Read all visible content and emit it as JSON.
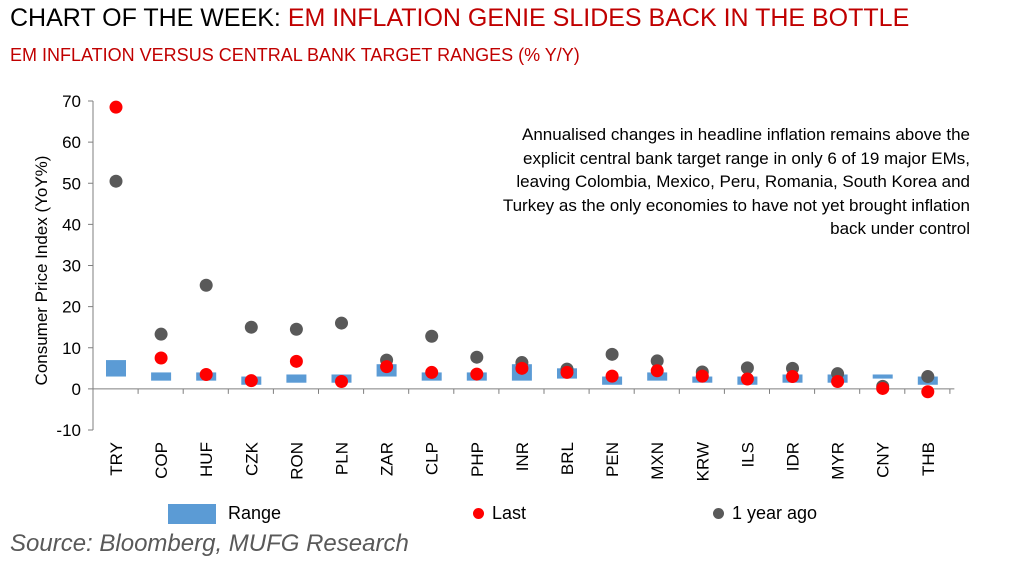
{
  "title": {
    "prefix": "CHART OF THE WEEK:",
    "accent": "EM INFLATION GENIE SLIDES BACK IN THE BOTTLE"
  },
  "subtitle": "EM INFLATION VERSUS CENTRAL BANK TARGET RANGES (% Y/Y)",
  "annotation": "Annualised changes in headline inflation remains above the explicit central bank target range in only 6 of 19 major EMs, leaving Colombia, Mexico, Peru, Romania, South Korea and Turkey as the only economies to have not yet brought inflation back under control",
  "source": "Source: Bloomberg, MUFG Research",
  "colors": {
    "range": "#5b9bd5",
    "last": "#ff0000",
    "year_ago": "#595959",
    "title_accent": "#c00000"
  },
  "chart_data": {
    "type": "scatter",
    "title": "EM INFLATION VERSUS CENTRAL BANK TARGET RANGES (% Y/Y)",
    "xlabel": "",
    "ylabel": "Consumer Price Index (YoY%)",
    "ylim": [
      -10,
      70
    ],
    "yticks": [
      -10,
      0,
      10,
      20,
      30,
      40,
      50,
      60,
      70
    ],
    "grid": false,
    "legend_position": "bottom",
    "categories": [
      "TRY",
      "COP",
      "HUF",
      "CZK",
      "RON",
      "PLN",
      "ZAR",
      "CLP",
      "PHP",
      "INR",
      "BRL",
      "PEN",
      "MXN",
      "KRW",
      "ILS",
      "IDR",
      "MYR",
      "CNY",
      "THB"
    ],
    "series": [
      {
        "name": "Range",
        "kind": "floating-bar",
        "low": [
          3,
          2,
          2,
          1,
          1.5,
          1.5,
          3,
          2,
          2,
          2,
          2.5,
          1,
          2,
          1.5,
          1,
          1.5,
          1.5,
          2.5,
          1
        ],
        "high": [
          7,
          4,
          4,
          3,
          3.5,
          3.5,
          6,
          4,
          4,
          6,
          5,
          3,
          4,
          3,
          3,
          3.5,
          3.5,
          3.5,
          3
        ]
      },
      {
        "name": "Last",
        "kind": "dot",
        "values": [
          68.5,
          7.5,
          3.5,
          2.0,
          6.7,
          1.8,
          5.4,
          4.0,
          3.6,
          5.0,
          4.0,
          3.1,
          4.4,
          3.1,
          2.4,
          3.0,
          1.8,
          0.1,
          -0.7
        ]
      },
      {
        "name": "1 year ago",
        "kind": "dot",
        "values": [
          50.5,
          13.3,
          25.2,
          15.0,
          14.5,
          16.0,
          7.0,
          12.8,
          7.7,
          6.4,
          4.8,
          8.4,
          6.8,
          4.1,
          5.1,
          5.0,
          3.7,
          0.6,
          3.0
        ]
      }
    ]
  }
}
